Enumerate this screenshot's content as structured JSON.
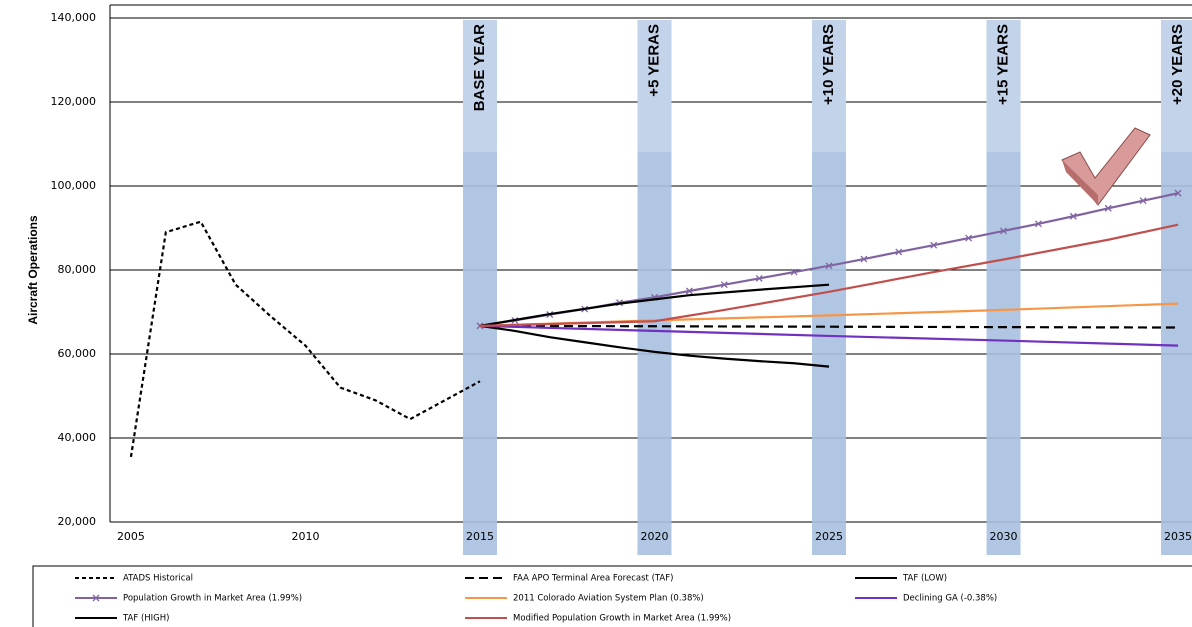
{
  "chart_data": {
    "type": "line",
    "y_label": "Aircraft Operations",
    "xlim": [
      2004.4,
      2035.4
    ],
    "ylim": [
      20000,
      140000
    ],
    "xticks": [
      2005,
      2010,
      2015,
      2020,
      2025,
      2030,
      2035
    ],
    "yticks": [
      {
        "value": 20000,
        "label": "20,000"
      },
      {
        "value": 40000,
        "label": "40,000"
      },
      {
        "value": 60000,
        "label": "60,000"
      },
      {
        "value": 80000,
        "label": "80,000"
      },
      {
        "value": 100000,
        "label": "100,000"
      },
      {
        "value": 120000,
        "label": "120,000"
      },
      {
        "value": 140000,
        "label": "140,000"
      }
    ],
    "grid": true,
    "annotations": [
      {
        "x": 2015,
        "label": "BASE YEAR"
      },
      {
        "x": 2020,
        "label": "+5 YERAS"
      },
      {
        "x": 2025,
        "label": "+10 YEARS"
      },
      {
        "x": 2030,
        "label": "+15 YEARS"
      },
      {
        "x": 2035,
        "label": "+20 YEARS"
      }
    ],
    "band_color": "#a9c0e0",
    "series": [
      {
        "name": "ATADS Historical",
        "color": "#000000",
        "dash": "short",
        "x": [
          2005,
          2006,
          2007,
          2008,
          2009,
          2010,
          2011,
          2012,
          2013,
          2014,
          2015
        ],
        "values": [
          35500,
          89000,
          91500,
          76500,
          69000,
          62000,
          52000,
          49000,
          44500,
          49000,
          53500
        ]
      },
      {
        "name": "FAA APO Terminal Area Forecast (TAF)",
        "color": "#000000",
        "dash": "long",
        "x": [
          2015,
          2020,
          2025,
          2030,
          2035
        ],
        "values": [
          66700,
          66600,
          66500,
          66400,
          66300
        ]
      },
      {
        "name": "TAF (LOW)",
        "color": "#000000",
        "x": [
          2015,
          2016,
          2017,
          2018,
          2019,
          2020,
          2021,
          2022,
          2023,
          2024,
          2025
        ],
        "values": [
          66700,
          65500,
          64000,
          62800,
          61600,
          60500,
          59600,
          58900,
          58300,
          57800,
          57000
        ]
      },
      {
        "name": "Population Growth in Market Area (1.99%)",
        "color": "#8064a2",
        "marker": "x",
        "x": [
          2015,
          2016,
          2017,
          2018,
          2019,
          2020,
          2021,
          2022,
          2023,
          2024,
          2025,
          2026,
          2027,
          2028,
          2029,
          2030,
          2031,
          2032,
          2033,
          2034,
          2035
        ],
        "values": [
          66700,
          68000,
          69400,
          70700,
          72200,
          73500,
          75000,
          76500,
          78000,
          79500,
          81000,
          82600,
          84300,
          85900,
          87600,
          89300,
          91000,
          92800,
          94700,
          96500,
          98300
        ]
      },
      {
        "name": "2011 Colorado Aviation System Plan (0.38%)",
        "color": "#f79646",
        "x": [
          2015,
          2020,
          2025,
          2030,
          2035
        ],
        "values": [
          66700,
          68000,
          69200,
          70500,
          72000
        ]
      },
      {
        "name": "Declining GA (-0.38%)",
        "color": "#7030c0",
        "x": [
          2015,
          2020,
          2025,
          2030,
          2035
        ],
        "values": [
          66700,
          65500,
          64300,
          63200,
          62000
        ]
      },
      {
        "name": "TAF (HIGH)",
        "color": "#000000",
        "x": [
          2015,
          2017,
          2019,
          2020,
          2021,
          2023,
          2025
        ],
        "values": [
          66700,
          69500,
          72000,
          73000,
          74000,
          75300,
          76500
        ]
      },
      {
        "name": "Modified Population Growth in Market Area (1.99%)",
        "color": "#c0504d",
        "x": [
          2015,
          2020,
          2022,
          2025,
          2028,
          2030,
          2033,
          2035
        ],
        "values": [
          66700,
          67800,
          70500,
          74800,
          79500,
          82500,
          87200,
          90800
        ]
      }
    ]
  }
}
